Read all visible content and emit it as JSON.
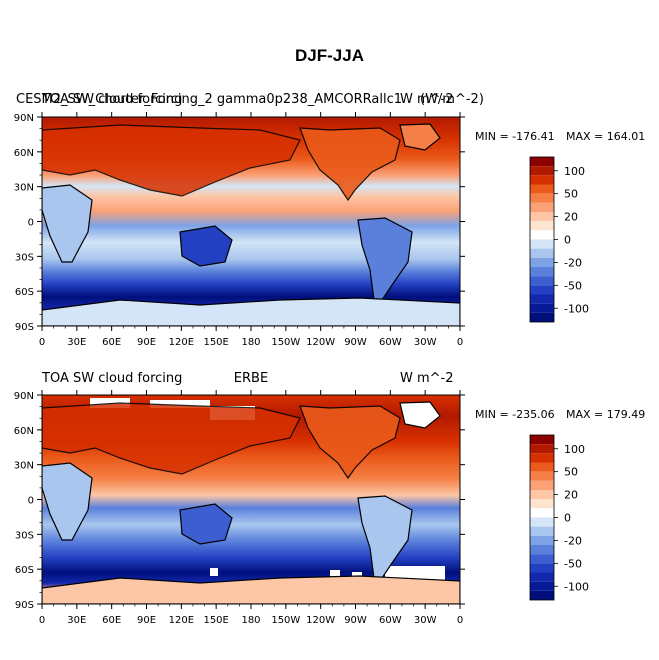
{
  "figure": {
    "title": "DJF-JJA"
  },
  "chart_data": [
    {
      "type": "heatmap",
      "panel": "top",
      "left_title": "CESM2_SW_Chorter_Forcing_2  gamma0p238_AMCORRallc1",
      "left_title_overlap": "TOA SW cloud forcing",
      "right_title": "(W/m^-2)",
      "right_title_overlap": "W m^-2",
      "min_label": "MIN = -176.41",
      "max_label": "MAX = 164.01",
      "min": -176.41,
      "max": 164.01,
      "x_ticks": [
        "0",
        "30E",
        "60E",
        "90E",
        "120E",
        "150E",
        "180",
        "150W",
        "120W",
        "90W",
        "60W",
        "30W",
        "0"
      ],
      "y_ticks": [
        "90N",
        "60N",
        "30N",
        "0",
        "30S",
        "60S",
        "90S"
      ],
      "xlim": [
        0,
        360
      ],
      "ylim": [
        -90,
        90
      ]
    },
    {
      "type": "heatmap",
      "panel": "bottom",
      "left_title": "TOA SW cloud forcing",
      "center_title": "ERBE",
      "right_title": "W m^-2",
      "min_label": "MIN = -235.06",
      "max_label": "MAX = 179.49",
      "min": -235.06,
      "max": 179.49,
      "x_ticks": [
        "0",
        "30E",
        "60E",
        "90E",
        "120E",
        "150E",
        "180",
        "150W",
        "120W",
        "90W",
        "60W",
        "30W",
        "0"
      ],
      "y_ticks": [
        "90N",
        "60N",
        "30N",
        "0",
        "30S",
        "60S",
        "90S"
      ],
      "xlim": [
        0,
        360
      ],
      "ylim": [
        -90,
        90
      ]
    }
  ],
  "colorbar": {
    "levels": [
      -140,
      -120,
      -100,
      -80,
      -60,
      -50,
      -40,
      -30,
      -20,
      -10,
      0,
      10,
      20,
      30,
      40,
      50,
      60,
      80,
      100,
      120,
      140
    ],
    "labels": [
      "100",
      "50",
      "20",
      "0",
      "-20",
      "-50",
      "-100"
    ],
    "colors": [
      "#8b0000",
      "#b21a00",
      "#d73000",
      "#ea5a1a",
      "#f57f46",
      "#fba177",
      "#fdc6a6",
      "#fee3cf",
      "#ffffff",
      "#d3e5f6",
      "#a8c6ee",
      "#7da2e6",
      "#5a80dc",
      "#3c5ed1",
      "#2440c2",
      "#1428ad",
      "#081a95",
      "#000f7c"
    ]
  }
}
